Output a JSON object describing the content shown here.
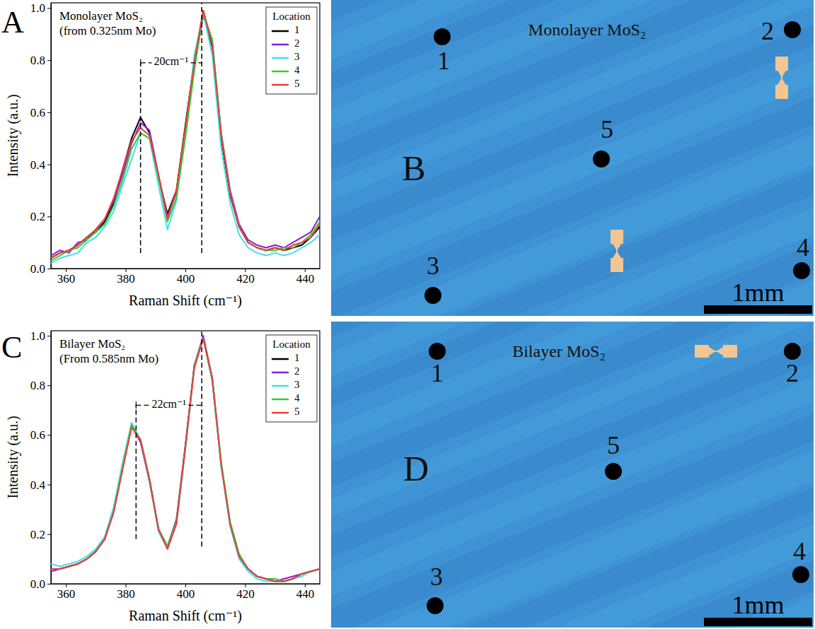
{
  "chart_data": [
    {
      "type": "line",
      "panel": "A",
      "title": "Monolayer MoS₂",
      "subtitle": "(from 0.325nm Mo)",
      "x_label": "Raman Shift (cm⁻¹)",
      "y_label": "Intensity (a.u.)",
      "xlim": [
        355,
        445
      ],
      "ylim": [
        0,
        1.02
      ],
      "xticks": [
        360,
        380,
        400,
        420,
        440
      ],
      "yticks": [
        {
          "value": 0,
          "label": "0.0"
        },
        0.2,
        0.4,
        0.6,
        0.8,
        {
          "value": 1,
          "label": "1.0"
        }
      ],
      "legend": "top-right",
      "legend_title": "Location",
      "x": [
        355,
        358,
        361,
        364,
        367,
        370,
        373,
        376,
        379,
        382,
        385,
        388,
        391,
        394,
        397,
        400,
        403,
        406,
        409,
        412,
        415,
        418,
        421,
        424,
        427,
        430,
        433,
        436,
        439,
        442,
        445
      ],
      "series": [
        {
          "name": "1",
          "color": "#000000",
          "values": [
            0.04,
            0.06,
            0.07,
            0.09,
            0.12,
            0.14,
            0.18,
            0.25,
            0.38,
            0.5,
            0.58,
            0.52,
            0.35,
            0.21,
            0.3,
            0.55,
            0.8,
            0.99,
            0.85,
            0.5,
            0.28,
            0.16,
            0.1,
            0.08,
            0.07,
            0.08,
            0.07,
            0.08,
            0.09,
            0.12,
            0.16
          ]
        },
        {
          "name": "2",
          "color": "#8a1fd0",
          "values": [
            0.05,
            0.07,
            0.06,
            0.1,
            0.11,
            0.15,
            0.19,
            0.26,
            0.36,
            0.48,
            0.56,
            0.53,
            0.36,
            0.2,
            0.29,
            0.53,
            0.78,
            0.97,
            0.87,
            0.52,
            0.3,
            0.17,
            0.11,
            0.09,
            0.08,
            0.09,
            0.08,
            0.1,
            0.12,
            0.14,
            0.2
          ]
        },
        {
          "name": "3",
          "color": "#3fe0f0",
          "values": [
            0.02,
            0.04,
            0.05,
            0.06,
            0.1,
            0.12,
            0.16,
            0.22,
            0.32,
            0.42,
            0.52,
            0.5,
            0.32,
            0.15,
            0.26,
            0.52,
            0.82,
            0.98,
            0.82,
            0.46,
            0.25,
            0.13,
            0.08,
            0.06,
            0.05,
            0.06,
            0.05,
            0.06,
            0.08,
            0.1,
            0.13
          ]
        },
        {
          "name": "4",
          "color": "#33cc33",
          "values": [
            0.03,
            0.05,
            0.07,
            0.08,
            0.11,
            0.14,
            0.17,
            0.24,
            0.34,
            0.46,
            0.52,
            0.5,
            0.35,
            0.18,
            0.27,
            0.5,
            0.76,
            0.98,
            0.88,
            0.52,
            0.29,
            0.16,
            0.1,
            0.08,
            0.07,
            0.07,
            0.08,
            0.08,
            0.1,
            0.13,
            0.18
          ]
        },
        {
          "name": "5",
          "color": "#f03c3c",
          "values": [
            0.04,
            0.06,
            0.07,
            0.09,
            0.12,
            0.15,
            0.19,
            0.27,
            0.38,
            0.49,
            0.54,
            0.51,
            0.36,
            0.19,
            0.3,
            0.54,
            0.79,
            0.99,
            0.86,
            0.51,
            0.29,
            0.16,
            0.1,
            0.08,
            0.07,
            0.08,
            0.07,
            0.09,
            0.1,
            0.12,
            0.17
          ]
        }
      ],
      "annotations": [
        {
          "text": "20cm⁻¹",
          "y": 0.79,
          "line_style": "dashed",
          "lines": [
            {
              "x": 385,
              "y": [
                0.06,
                0.79
              ]
            },
            {
              "x": 405.5,
              "y": [
                0.06,
                1.02
              ]
            }
          ]
        }
      ]
    },
    {
      "type": "line",
      "panel": "C",
      "title": "Bilayer MoS₂",
      "subtitle": "(From 0.585nm Mo)",
      "x_label": "Raman Shift (cm⁻¹)",
      "y_label": "Intensity (a.u.)",
      "xlim": [
        355,
        445
      ],
      "ylim": [
        0,
        1.02
      ],
      "xticks": [
        360,
        380,
        400,
        420,
        440
      ],
      "yticks": [
        {
          "value": 0,
          "label": "0.0"
        },
        0.2,
        0.4,
        0.6,
        0.8,
        {
          "value": 1,
          "label": "1.0"
        }
      ],
      "legend": "top-right",
      "legend_title": "Location",
      "x": [
        355,
        358,
        361,
        364,
        367,
        370,
        373,
        376,
        379,
        382,
        385,
        388,
        391,
        394,
        397,
        400,
        403,
        406,
        409,
        412,
        415,
        418,
        421,
        424,
        427,
        430,
        433,
        436,
        439,
        442,
        445
      ],
      "series": [
        {
          "name": "1",
          "color": "#000000",
          "values": [
            0.06,
            0.06,
            0.07,
            0.08,
            0.1,
            0.13,
            0.18,
            0.29,
            0.47,
            0.64,
            0.58,
            0.42,
            0.22,
            0.15,
            0.25,
            0.55,
            0.88,
            0.99,
            0.82,
            0.48,
            0.24,
            0.11,
            0.06,
            0.03,
            0.02,
            0.01,
            0.01,
            0.02,
            0.04,
            0.05,
            0.06
          ]
        },
        {
          "name": "2",
          "color": "#8a1fd0",
          "values": [
            0.05,
            0.06,
            0.07,
            0.08,
            0.1,
            0.13,
            0.18,
            0.29,
            0.47,
            0.64,
            0.57,
            0.41,
            0.22,
            0.15,
            0.26,
            0.56,
            0.88,
            1.0,
            0.83,
            0.48,
            0.24,
            0.11,
            0.06,
            0.03,
            0.02,
            0.01,
            0.02,
            0.03,
            0.04,
            0.05,
            0.06
          ]
        },
        {
          "name": "3",
          "color": "#3fe0f0",
          "values": [
            0.08,
            0.07,
            0.08,
            0.09,
            0.11,
            0.14,
            0.19,
            0.31,
            0.49,
            0.65,
            0.58,
            0.41,
            0.21,
            0.14,
            0.24,
            0.54,
            0.87,
            0.99,
            0.82,
            0.47,
            0.23,
            0.1,
            0.05,
            0.02,
            0.01,
            0.01,
            0.01,
            0.02,
            0.03,
            0.05,
            0.06
          ]
        },
        {
          "name": "4",
          "color": "#33cc33",
          "values": [
            0.06,
            0.06,
            0.07,
            0.08,
            0.1,
            0.13,
            0.18,
            0.29,
            0.47,
            0.64,
            0.58,
            0.42,
            0.22,
            0.15,
            0.25,
            0.55,
            0.88,
            0.99,
            0.83,
            0.49,
            0.25,
            0.12,
            0.06,
            0.03,
            0.02,
            0.02,
            0.01,
            0.02,
            0.04,
            0.05,
            0.06
          ]
        },
        {
          "name": "5",
          "color": "#f03c3c",
          "values": [
            0.06,
            0.06,
            0.07,
            0.08,
            0.1,
            0.13,
            0.18,
            0.29,
            0.46,
            0.63,
            0.58,
            0.42,
            0.22,
            0.14,
            0.24,
            0.55,
            0.87,
            0.99,
            0.83,
            0.48,
            0.24,
            0.11,
            0.06,
            0.03,
            0.02,
            0.01,
            0.01,
            0.02,
            0.04,
            0.05,
            0.06
          ]
        }
      ],
      "annotations": [
        {
          "text": "22cm⁻¹",
          "y": 0.72,
          "line_style": "dashed",
          "lines": [
            {
              "x": 383.5,
              "y": [
                0.18,
                0.72
              ]
            },
            {
              "x": 405.5,
              "y": [
                0.15,
                1.02
              ]
            }
          ]
        }
      ]
    }
  ],
  "images": [
    {
      "panel": "B",
      "title": "Monolayer MoS₂",
      "points": [
        "1",
        "2",
        "3",
        "4",
        "5"
      ],
      "scale_bar": "1mm"
    },
    {
      "panel": "D",
      "title": "Bilayer MoS₂",
      "points": [
        "1",
        "2",
        "3",
        "4",
        "5"
      ],
      "scale_bar": "1mm"
    }
  ]
}
